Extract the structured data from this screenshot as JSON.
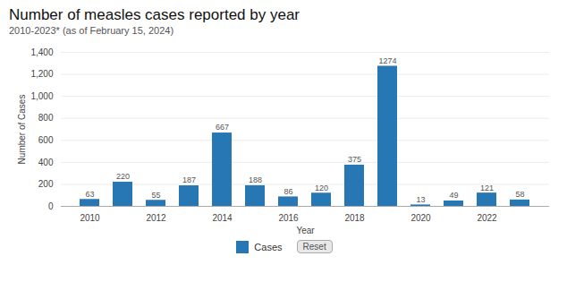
{
  "chart_data": {
    "type": "bar",
    "title": "Number of measles cases reported by year",
    "subtitle": "2010-2023* (as of February 15, 2024)",
    "xlabel": "Year",
    "ylabel": "Number of Cases",
    "categories": [
      "2010",
      null,
      "2012",
      null,
      "2014",
      null,
      "2016",
      null,
      "2018",
      null,
      "2020",
      null,
      "2022",
      null
    ],
    "series": [
      {
        "name": "Cases",
        "color": "#2777b4",
        "values": [
          63,
          220,
          55,
          187,
          667,
          188,
          86,
          120,
          375,
          1274,
          13,
          49,
          121,
          58
        ]
      }
    ],
    "ylim": [
      0,
      1400
    ],
    "yticks": [
      0,
      200,
      400,
      600,
      800,
      1000,
      1200,
      1400
    ],
    "grid": true,
    "data_labels": true,
    "legend": "bottom",
    "annotations": [
      "Reset"
    ]
  }
}
